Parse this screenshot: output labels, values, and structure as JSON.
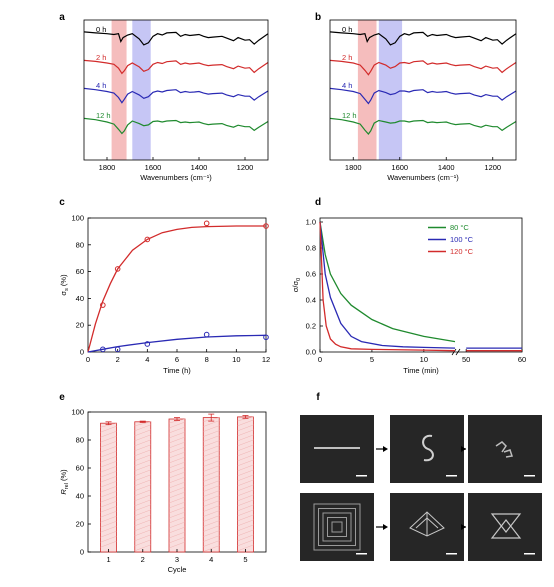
{
  "figure": {
    "panel_letters": [
      "a",
      "b",
      "c",
      "d",
      "e",
      "f"
    ]
  },
  "chart_data": [
    {
      "panel": "a",
      "type": "line",
      "xlabel": "Wavenumbers (cm⁻¹)",
      "xticks": [
        "1800",
        "1600",
        "1400",
        "1200"
      ],
      "xlim": [
        1900,
        1100
      ],
      "highlight_bands": [
        {
          "from": 1780,
          "to": 1715,
          "color": "#f2a7a7"
        },
        {
          "from": 1690,
          "to": 1610,
          "color": "#b3b3f2"
        }
      ],
      "series": [
        {
          "name": "0 h",
          "color": "#000000",
          "x": [
            1900,
            1850,
            1800,
            1770,
            1750,
            1740,
            1730,
            1710,
            1690,
            1660,
            1640,
            1620,
            1600,
            1580,
            1560,
            1540,
            1500,
            1480,
            1460,
            1440,
            1420,
            1400,
            1380,
            1360,
            1340,
            1300,
            1280,
            1250,
            1230,
            1200,
            1180,
            1160,
            1140,
            1100
          ],
          "y": [
            0.62,
            0.58,
            0.55,
            0.52,
            0.55,
            0.25,
            0.4,
            0.5,
            0.55,
            0.35,
            0.12,
            0.2,
            0.45,
            0.55,
            0.5,
            0.58,
            0.6,
            0.45,
            0.52,
            0.48,
            0.5,
            0.52,
            0.45,
            0.4,
            0.42,
            0.45,
            0.38,
            0.28,
            0.4,
            0.3,
            0.32,
            0.15,
            0.3,
            0.55
          ]
        },
        {
          "name": "2 h",
          "color": "#d22b2b",
          "x": [
            1900,
            1850,
            1800,
            1770,
            1750,
            1735,
            1725,
            1710,
            1690,
            1660,
            1640,
            1620,
            1600,
            1580,
            1560,
            1540,
            1500,
            1480,
            1460,
            1440,
            1420,
            1400,
            1380,
            1360,
            1340,
            1300,
            1280,
            1250,
            1230,
            1200,
            1180,
            1160,
            1140,
            1100
          ],
          "y": [
            0.6,
            0.56,
            0.5,
            0.45,
            0.3,
            0.1,
            0.2,
            0.4,
            0.5,
            0.35,
            0.18,
            0.25,
            0.45,
            0.52,
            0.48,
            0.55,
            0.58,
            0.45,
            0.5,
            0.46,
            0.48,
            0.5,
            0.44,
            0.4,
            0.42,
            0.44,
            0.36,
            0.28,
            0.38,
            0.3,
            0.32,
            0.14,
            0.28,
            0.52
          ]
        },
        {
          "name": "4 h",
          "color": "#2a2ab4",
          "x": [
            1900,
            1850,
            1800,
            1770,
            1750,
            1735,
            1725,
            1710,
            1690,
            1660,
            1640,
            1620,
            1600,
            1580,
            1560,
            1540,
            1500,
            1480,
            1460,
            1440,
            1420,
            1400,
            1380,
            1360,
            1340,
            1300,
            1280,
            1250,
            1230,
            1200,
            1180,
            1160,
            1140,
            1100
          ],
          "y": [
            0.6,
            0.55,
            0.48,
            0.42,
            0.25,
            0.05,
            0.18,
            0.38,
            0.48,
            0.35,
            0.22,
            0.28,
            0.45,
            0.5,
            0.46,
            0.52,
            0.55,
            0.44,
            0.48,
            0.45,
            0.46,
            0.48,
            0.42,
            0.38,
            0.4,
            0.42,
            0.35,
            0.28,
            0.36,
            0.3,
            0.3,
            0.15,
            0.28,
            0.5
          ]
        },
        {
          "name": "12 h",
          "color": "#1f8a2e",
          "x": [
            1900,
            1850,
            1800,
            1770,
            1750,
            1735,
            1725,
            1710,
            1690,
            1660,
            1640,
            1620,
            1600,
            1580,
            1560,
            1540,
            1500,
            1480,
            1460,
            1440,
            1420,
            1400,
            1380,
            1360,
            1340,
            1300,
            1280,
            1250,
            1230,
            1200,
            1180,
            1160,
            1140,
            1100
          ],
          "y": [
            0.6,
            0.55,
            0.46,
            0.38,
            0.18,
            0.02,
            0.12,
            0.35,
            0.5,
            0.4,
            0.32,
            0.35,
            0.48,
            0.5,
            0.46,
            0.5,
            0.52,
            0.44,
            0.46,
            0.44,
            0.45,
            0.46,
            0.4,
            0.36,
            0.38,
            0.4,
            0.33,
            0.26,
            0.34,
            0.28,
            0.28,
            0.14,
            0.26,
            0.48
          ]
        }
      ]
    },
    {
      "panel": "b",
      "type": "line",
      "xlabel": "Wavenumbers (cm⁻¹)",
      "xticks": [
        "1800",
        "1600",
        "1400",
        "1200"
      ],
      "xlim": [
        1900,
        1100
      ],
      "highlight_bands": [
        {
          "from": 1780,
          "to": 1700,
          "color": "#f2a7a7"
        },
        {
          "from": 1690,
          "to": 1590,
          "color": "#b3b3f2"
        }
      ],
      "series": [
        {
          "name": "0 h",
          "color": "#000000",
          "x": [
            1900,
            1850,
            1800,
            1770,
            1750,
            1740,
            1730,
            1710,
            1690,
            1660,
            1640,
            1620,
            1600,
            1580,
            1560,
            1540,
            1500,
            1480,
            1460,
            1440,
            1420,
            1400,
            1380,
            1360,
            1340,
            1300,
            1280,
            1250,
            1230,
            1200,
            1180,
            1160,
            1140,
            1100
          ],
          "y": [
            0.62,
            0.58,
            0.55,
            0.52,
            0.55,
            0.25,
            0.4,
            0.5,
            0.55,
            0.35,
            0.12,
            0.2,
            0.45,
            0.55,
            0.5,
            0.58,
            0.6,
            0.45,
            0.52,
            0.48,
            0.5,
            0.52,
            0.45,
            0.4,
            0.42,
            0.45,
            0.38,
            0.28,
            0.4,
            0.3,
            0.32,
            0.15,
            0.3,
            0.55
          ]
        },
        {
          "name": "2 h",
          "color": "#d22b2b",
          "x": [
            1900,
            1850,
            1800,
            1770,
            1750,
            1735,
            1725,
            1710,
            1690,
            1660,
            1640,
            1620,
            1600,
            1580,
            1560,
            1540,
            1500,
            1480,
            1460,
            1440,
            1420,
            1400,
            1380,
            1360,
            1340,
            1300,
            1280,
            1250,
            1230,
            1200,
            1180,
            1160,
            1140,
            1100
          ],
          "y": [
            0.6,
            0.56,
            0.5,
            0.42,
            0.22,
            0.05,
            0.18,
            0.42,
            0.52,
            0.42,
            0.3,
            0.36,
            0.5,
            0.52,
            0.48,
            0.55,
            0.58,
            0.45,
            0.5,
            0.46,
            0.48,
            0.5,
            0.44,
            0.4,
            0.42,
            0.44,
            0.36,
            0.28,
            0.38,
            0.3,
            0.32,
            0.14,
            0.28,
            0.52
          ]
        },
        {
          "name": "4 h",
          "color": "#2a2ab4",
          "x": [
            1900,
            1850,
            1800,
            1770,
            1750,
            1735,
            1725,
            1710,
            1690,
            1660,
            1640,
            1620,
            1600,
            1580,
            1560,
            1540,
            1500,
            1480,
            1460,
            1440,
            1420,
            1400,
            1380,
            1360,
            1340,
            1300,
            1280,
            1250,
            1230,
            1200,
            1180,
            1160,
            1140,
            1100
          ],
          "y": [
            0.6,
            0.55,
            0.48,
            0.4,
            0.18,
            0.02,
            0.15,
            0.42,
            0.52,
            0.44,
            0.36,
            0.4,
            0.5,
            0.5,
            0.46,
            0.52,
            0.55,
            0.44,
            0.48,
            0.45,
            0.46,
            0.48,
            0.42,
            0.38,
            0.4,
            0.42,
            0.35,
            0.28,
            0.36,
            0.3,
            0.3,
            0.15,
            0.28,
            0.5
          ]
        },
        {
          "name": "12 h",
          "color": "#1f8a2e",
          "x": [
            1900,
            1850,
            1800,
            1770,
            1750,
            1735,
            1725,
            1710,
            1690,
            1660,
            1640,
            1620,
            1600,
            1580,
            1560,
            1540,
            1500,
            1480,
            1460,
            1440,
            1420,
            1400,
            1380,
            1360,
            1340,
            1300,
            1280,
            1250,
            1230,
            1200,
            1180,
            1160,
            1140,
            1100
          ],
          "y": [
            0.6,
            0.55,
            0.46,
            0.38,
            0.15,
            0.0,
            0.12,
            0.42,
            0.52,
            0.46,
            0.42,
            0.44,
            0.5,
            0.5,
            0.46,
            0.5,
            0.52,
            0.44,
            0.46,
            0.44,
            0.45,
            0.46,
            0.4,
            0.36,
            0.38,
            0.4,
            0.33,
            0.26,
            0.34,
            0.28,
            0.28,
            0.14,
            0.26,
            0.48
          ]
        }
      ]
    },
    {
      "panel": "c",
      "type": "scatter",
      "xlabel": "Time (h)",
      "ylabel": "σ",
      "ylabel_sub": "s",
      "ylabel_tail": " (%)",
      "xlim": [
        0,
        12
      ],
      "ylim": [
        0,
        100
      ],
      "xticks": [
        0,
        2,
        4,
        6,
        8,
        10,
        12
      ],
      "yticks": [
        0,
        20,
        40,
        60,
        80,
        100
      ],
      "series": [
        {
          "color": "#d22b2b",
          "points": [
            [
              1,
              35
            ],
            [
              2,
              62
            ],
            [
              4,
              84
            ],
            [
              8,
              96
            ],
            [
              12,
              94
            ]
          ],
          "fit": [
            [
              0,
              0
            ],
            [
              0.5,
              21
            ],
            [
              1,
              38
            ],
            [
              1.5,
              51
            ],
            [
              2,
              62
            ],
            [
              3,
              76
            ],
            [
              4,
              84
            ],
            [
              5,
              89
            ],
            [
              6,
              91.5
            ],
            [
              7,
              93
            ],
            [
              8,
              93.6
            ],
            [
              10,
              94
            ],
            [
              12,
              94
            ]
          ]
        },
        {
          "color": "#2a2ab4",
          "points": [
            [
              1,
              2
            ],
            [
              2,
              2
            ],
            [
              4,
              6
            ],
            [
              8,
              13
            ],
            [
              12,
              11
            ]
          ],
          "fit": [
            [
              0,
              0
            ],
            [
              1,
              2
            ],
            [
              2,
              4
            ],
            [
              4,
              7
            ],
            [
              6,
              9.5
            ],
            [
              8,
              11.2
            ],
            [
              10,
              12.1
            ],
            [
              12,
              12.5
            ]
          ]
        }
      ]
    },
    {
      "panel": "d",
      "type": "line",
      "xlabel": "Time (min)",
      "ylabel": "σ/σ",
      "ylabel_sub": "0",
      "xticks": [
        0,
        5,
        10,
        50,
        60
      ],
      "ylim": [
        0,
        1.0
      ],
      "yticks": [
        "0.0",
        "0.2",
        "0.4",
        "0.6",
        "0.8",
        "1.0"
      ],
      "legend_position": "top-right",
      "series": [
        {
          "name": "80 °C",
          "color": "#1f8a2e",
          "x": [
            0,
            0.5,
            1,
            2,
            3,
            5,
            7,
            10,
            13
          ],
          "y": [
            1.0,
            0.75,
            0.6,
            0.45,
            0.36,
            0.25,
            0.18,
            0.12,
            0.08
          ]
        },
        {
          "name": "100 °C",
          "color": "#2a2ab4",
          "x": [
            0,
            0.5,
            1,
            2,
            3,
            4,
            6,
            8,
            10,
            13,
            50,
            60
          ],
          "y": [
            1.0,
            0.6,
            0.42,
            0.22,
            0.12,
            0.08,
            0.05,
            0.04,
            0.035,
            0.03,
            0.03,
            0.03
          ]
        },
        {
          "name": "120 °C",
          "color": "#d22b2b",
          "x": [
            0,
            0.3,
            0.6,
            1,
            1.5,
            2,
            3,
            5,
            10,
            13,
            50,
            60
          ],
          "y": [
            1.0,
            0.4,
            0.2,
            0.1,
            0.06,
            0.04,
            0.025,
            0.02,
            0.015,
            0.01,
            0.01,
            0.01
          ]
        }
      ]
    },
    {
      "panel": "e",
      "type": "bar",
      "xlabel": "Cycle",
      "ylabel": "R",
      "ylabel_sub": "rel",
      "ylabel_tail": " (%)",
      "categories": [
        "1",
        "2",
        "3",
        "4",
        "5"
      ],
      "values": [
        92,
        93,
        95,
        96,
        96.5
      ],
      "errors": [
        1,
        0.5,
        1,
        2.5,
        1
      ],
      "ylim": [
        0,
        100
      ],
      "yticks": [
        0,
        20,
        40,
        60,
        80,
        100
      ]
    }
  ],
  "photos": {
    "row1": [
      "straight-strip",
      "s-shaped-strip",
      "curled-shape"
    ],
    "row2": [
      "concentric-squares",
      "pyramid-structure",
      "star-lattice"
    ]
  }
}
